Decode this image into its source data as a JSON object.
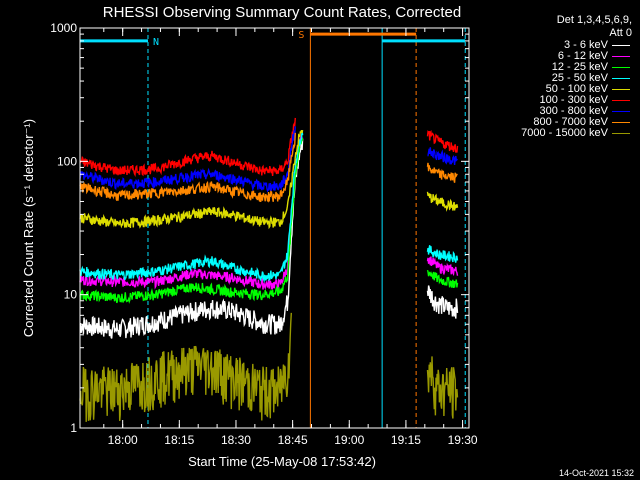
{
  "chart_data": {
    "type": "line",
    "title": "RHESSI Observing Summary Count Rates, Corrected",
    "ylabel": "Corrected Count Rate (s⁻¹ detector⁻¹)",
    "xlabel": "Start Time (25-May-08 17:53:42)",
    "ylog": true,
    "ylim": [
      1,
      1000
    ],
    "xlim_minutes": [
      -5,
      98
    ],
    "y_tick_labels": [
      "1",
      "10",
      "100",
      "1000"
    ],
    "x_tick_labels": [
      "18:00",
      "18:15",
      "18:30",
      "18:45",
      "19:00",
      "19:15",
      "19:30"
    ],
    "legend_header": [
      "Det 1,3,4,5,6,9,",
      "Att 0"
    ],
    "series": [
      {
        "name": "3 - 6 keV",
        "color": "#ffffff",
        "points": [
          [
            -5,
            6
          ],
          [
            5,
            5.5
          ],
          [
            15,
            6.3
          ],
          [
            25,
            7.5
          ],
          [
            30,
            8
          ],
          [
            35,
            7.6
          ],
          [
            43,
            6.2
          ],
          [
            48,
            6
          ],
          [
            50,
            9
          ],
          [
            51,
            30
          ],
          [
            52,
            70
          ],
          [
            53,
            110
          ],
          [
            54,
            150
          ]
        ],
        "points2": [
          [
            87,
            11
          ],
          [
            89,
            9
          ],
          [
            92,
            8
          ],
          [
            95,
            8
          ]
        ]
      },
      {
        "name": "6 - 12 keV",
        "color": "#ff00ff",
        "points": [
          [
            -5,
            13
          ],
          [
            5,
            12.5
          ],
          [
            15,
            12.5
          ],
          [
            25,
            14.5
          ],
          [
            30,
            14
          ],
          [
            35,
            13.5
          ],
          [
            43,
            12
          ],
          [
            48,
            12
          ],
          [
            50,
            16
          ],
          [
            51,
            40
          ],
          [
            52,
            90
          ],
          [
            53,
            130
          ],
          [
            54,
            160
          ]
        ],
        "points2": [
          [
            87,
            19
          ],
          [
            90,
            16
          ],
          [
            95,
            15
          ]
        ]
      },
      {
        "name": "12 - 25 keV",
        "color": "#00ff00",
        "points": [
          [
            -5,
            10
          ],
          [
            5,
            9.5
          ],
          [
            15,
            10
          ],
          [
            25,
            11.5
          ],
          [
            30,
            11
          ],
          [
            35,
            10.5
          ],
          [
            43,
            10
          ],
          [
            48,
            10.5
          ],
          [
            50,
            14
          ],
          [
            51,
            35
          ],
          [
            52,
            80
          ],
          [
            53,
            120
          ],
          [
            54,
            150
          ]
        ],
        "points2": [
          [
            87,
            15
          ],
          [
            90,
            13
          ],
          [
            95,
            12
          ]
        ]
      },
      {
        "name": "25 - 50 keV",
        "color": "#00ffff",
        "points": [
          [
            -5,
            15
          ],
          [
            5,
            14
          ],
          [
            15,
            15
          ],
          [
            25,
            17
          ],
          [
            30,
            18
          ],
          [
            35,
            16
          ],
          [
            43,
            14
          ],
          [
            48,
            14
          ],
          [
            50,
            20
          ],
          [
            51,
            45
          ],
          [
            52,
            95
          ],
          [
            53,
            140
          ],
          [
            54,
            170
          ]
        ],
        "points2": [
          [
            87,
            22
          ],
          [
            90,
            20
          ],
          [
            95,
            19
          ]
        ]
      },
      {
        "name": "50 - 100 keV",
        "color": "#dddd00",
        "points": [
          [
            -5,
            38
          ],
          [
            5,
            34
          ],
          [
            15,
            36
          ],
          [
            25,
            40
          ],
          [
            30,
            42
          ],
          [
            35,
            40
          ],
          [
            43,
            35
          ],
          [
            48,
            35
          ],
          [
            50,
            45
          ],
          [
            51,
            70
          ],
          [
            52,
            110
          ],
          [
            53,
            150
          ],
          [
            54,
            180
          ]
        ],
        "points2": [
          [
            87,
            55
          ],
          [
            90,
            50
          ],
          [
            95,
            45
          ]
        ]
      },
      {
        "name": "100 - 300 keV",
        "color": "#ff0000",
        "points": [
          [
            -5,
            100
          ],
          [
            5,
            85
          ],
          [
            15,
            88
          ],
          [
            25,
            105
          ],
          [
            30,
            110
          ],
          [
            35,
            100
          ],
          [
            43,
            85
          ],
          [
            48,
            85
          ],
          [
            50,
            100
          ],
          [
            51,
            150
          ],
          [
            52,
            200
          ]
        ],
        "points2": [
          [
            87,
            160
          ],
          [
            90,
            140
          ],
          [
            95,
            125
          ]
        ]
      },
      {
        "name": "300 - 800 keV",
        "color": "#0000ff",
        "points": [
          [
            -5,
            80
          ],
          [
            5,
            68
          ],
          [
            15,
            70
          ],
          [
            25,
            78
          ],
          [
            30,
            80
          ],
          [
            35,
            75
          ],
          [
            43,
            65
          ],
          [
            48,
            65
          ],
          [
            50,
            80
          ],
          [
            51,
            130
          ],
          [
            52,
            180
          ]
        ],
        "points2": [
          [
            87,
            120
          ],
          [
            90,
            110
          ],
          [
            95,
            100
          ]
        ]
      },
      {
        "name": "800 - 7000 keV",
        "color": "#ff8800",
        "points": [
          [
            -5,
            65
          ],
          [
            5,
            55
          ],
          [
            15,
            58
          ],
          [
            25,
            62
          ],
          [
            30,
            65
          ],
          [
            35,
            60
          ],
          [
            43,
            54
          ],
          [
            48,
            55
          ],
          [
            50,
            70
          ],
          [
            51,
            110
          ],
          [
            52,
            150
          ]
        ],
        "points2": [
          [
            87,
            90
          ],
          [
            90,
            80
          ],
          [
            95,
            75
          ]
        ]
      },
      {
        "name": "7000 - 15000 keV",
        "color": "#999900",
        "points": [
          [
            -5,
            2
          ],
          [
            5,
            2
          ],
          [
            15,
            2.5
          ],
          [
            25,
            3
          ],
          [
            30,
            3
          ],
          [
            35,
            2.5
          ],
          [
            43,
            2
          ],
          [
            48,
            2
          ],
          [
            50,
            3
          ],
          [
            51,
            6
          ]
        ],
        "points2": [
          [
            87,
            3
          ],
          [
            90,
            2
          ],
          [
            95,
            2
          ]
        ]
      }
    ],
    "annotations": [
      {
        "label": "N",
        "color": "#00e0ff",
        "y": 800,
        "x_start": -5,
        "x_end": 13
      },
      {
        "label": "S",
        "color": "#ff7700",
        "y": 900,
        "x_start": 56,
        "x_end": 84
      },
      {
        "label": "",
        "color": "#00e0ff",
        "y": 800,
        "x_start": 75,
        "x_end": 97
      }
    ],
    "vertical_lines": [
      {
        "x": -5,
        "color": "#00e0ff",
        "dash": false
      },
      {
        "x": 13,
        "color": "#00e0ff",
        "dash": true
      },
      {
        "x": 56,
        "color": "#ff7700",
        "dash": false
      },
      {
        "x": 75,
        "color": "#00e0ff",
        "dash": false
      },
      {
        "x": 84,
        "color": "#ff7700",
        "dash": true
      },
      {
        "x": 97,
        "color": "#00e0ff",
        "dash": true
      }
    ],
    "gap_minutes": [
      55,
      86
    ],
    "footer": "14-Oct-2021 15:32"
  }
}
